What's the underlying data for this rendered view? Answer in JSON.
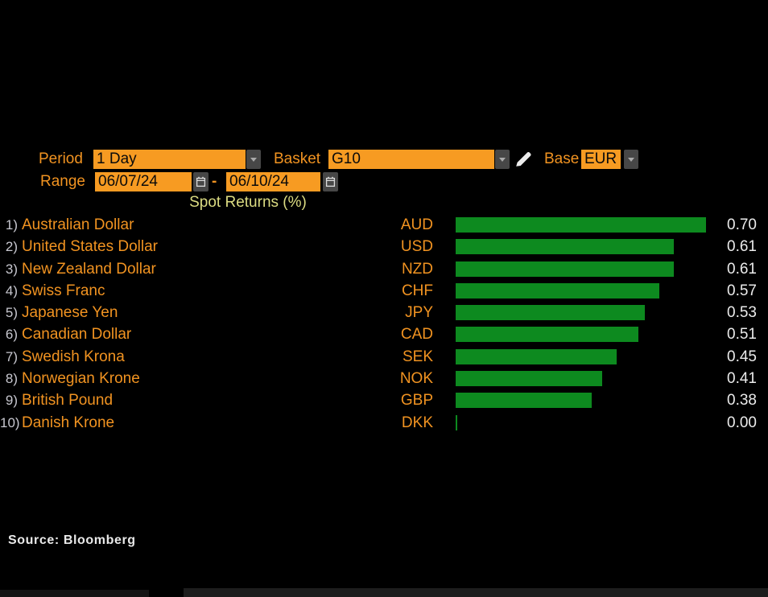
{
  "controls": {
    "period": {
      "label": "Period",
      "value": "1 Day"
    },
    "basket": {
      "label": "Basket",
      "value": "G10"
    },
    "base": {
      "label": "Base",
      "value": "EUR"
    },
    "range": {
      "label": "Range",
      "start": "06/07/24",
      "separator": "-",
      "end": "06/10/24"
    }
  },
  "chart_data": {
    "type": "bar",
    "orientation": "horizontal",
    "title": "Spot Returns (%)",
    "xlabel": "",
    "ylabel": "",
    "xlim": [
      0,
      0.7
    ],
    "grid": false,
    "legend": false,
    "bar_color": "#0d8a1f",
    "categories": [
      "Australian Dollar",
      "United States Dollar",
      "New Zealand Dollar",
      "Swiss Franc",
      "Japanese Yen",
      "Canadian Dollar",
      "Swedish Krona",
      "Norwegian Krone",
      "British Pound",
      "Danish Krone"
    ],
    "tickers": [
      "AUD",
      "USD",
      "NZD",
      "CHF",
      "JPY",
      "CAD",
      "SEK",
      "NOK",
      "GBP",
      "DKK"
    ],
    "values": [
      0.7,
      0.61,
      0.61,
      0.57,
      0.53,
      0.51,
      0.45,
      0.41,
      0.38,
      0.0
    ],
    "rows": [
      {
        "index": "1)",
        "name": "Australian Dollar",
        "ticker": "AUD",
        "value": 0.7,
        "label": "0.70"
      },
      {
        "index": "2)",
        "name": "United States Dollar",
        "ticker": "USD",
        "value": 0.61,
        "label": "0.61"
      },
      {
        "index": "3)",
        "name": "New Zealand Dollar",
        "ticker": "NZD",
        "value": 0.61,
        "label": "0.61"
      },
      {
        "index": "4)",
        "name": "Swiss Franc",
        "ticker": "CHF",
        "value": 0.57,
        "label": "0.57"
      },
      {
        "index": "5)",
        "name": "Japanese Yen",
        "ticker": "JPY",
        "value": 0.53,
        "label": "0.53"
      },
      {
        "index": "6)",
        "name": "Canadian Dollar",
        "ticker": "CAD",
        "value": 0.51,
        "label": "0.51"
      },
      {
        "index": "7)",
        "name": "Swedish Krona",
        "ticker": "SEK",
        "value": 0.45,
        "label": "0.45"
      },
      {
        "index": "8)",
        "name": "Norwegian Krone",
        "ticker": "NOK",
        "value": 0.41,
        "label": "0.41"
      },
      {
        "index": "9)",
        "name": "British Pound",
        "ticker": "GBP",
        "value": 0.38,
        "label": "0.38"
      },
      {
        "index": "10)",
        "name": "Danish Krone",
        "ticker": "DKK",
        "value": 0.0,
        "label": "0.00"
      }
    ]
  },
  "source": "Source: Bloomberg",
  "colors": {
    "background": "#000000",
    "accent_orange": "#f19321",
    "field_orange": "#f79b22",
    "bar_green": "#0d8a1f",
    "title_yellow": "#dcdc82",
    "value_text": "#ebebeb",
    "index_text": "#c7c7cf",
    "button_gray": "#474747"
  }
}
